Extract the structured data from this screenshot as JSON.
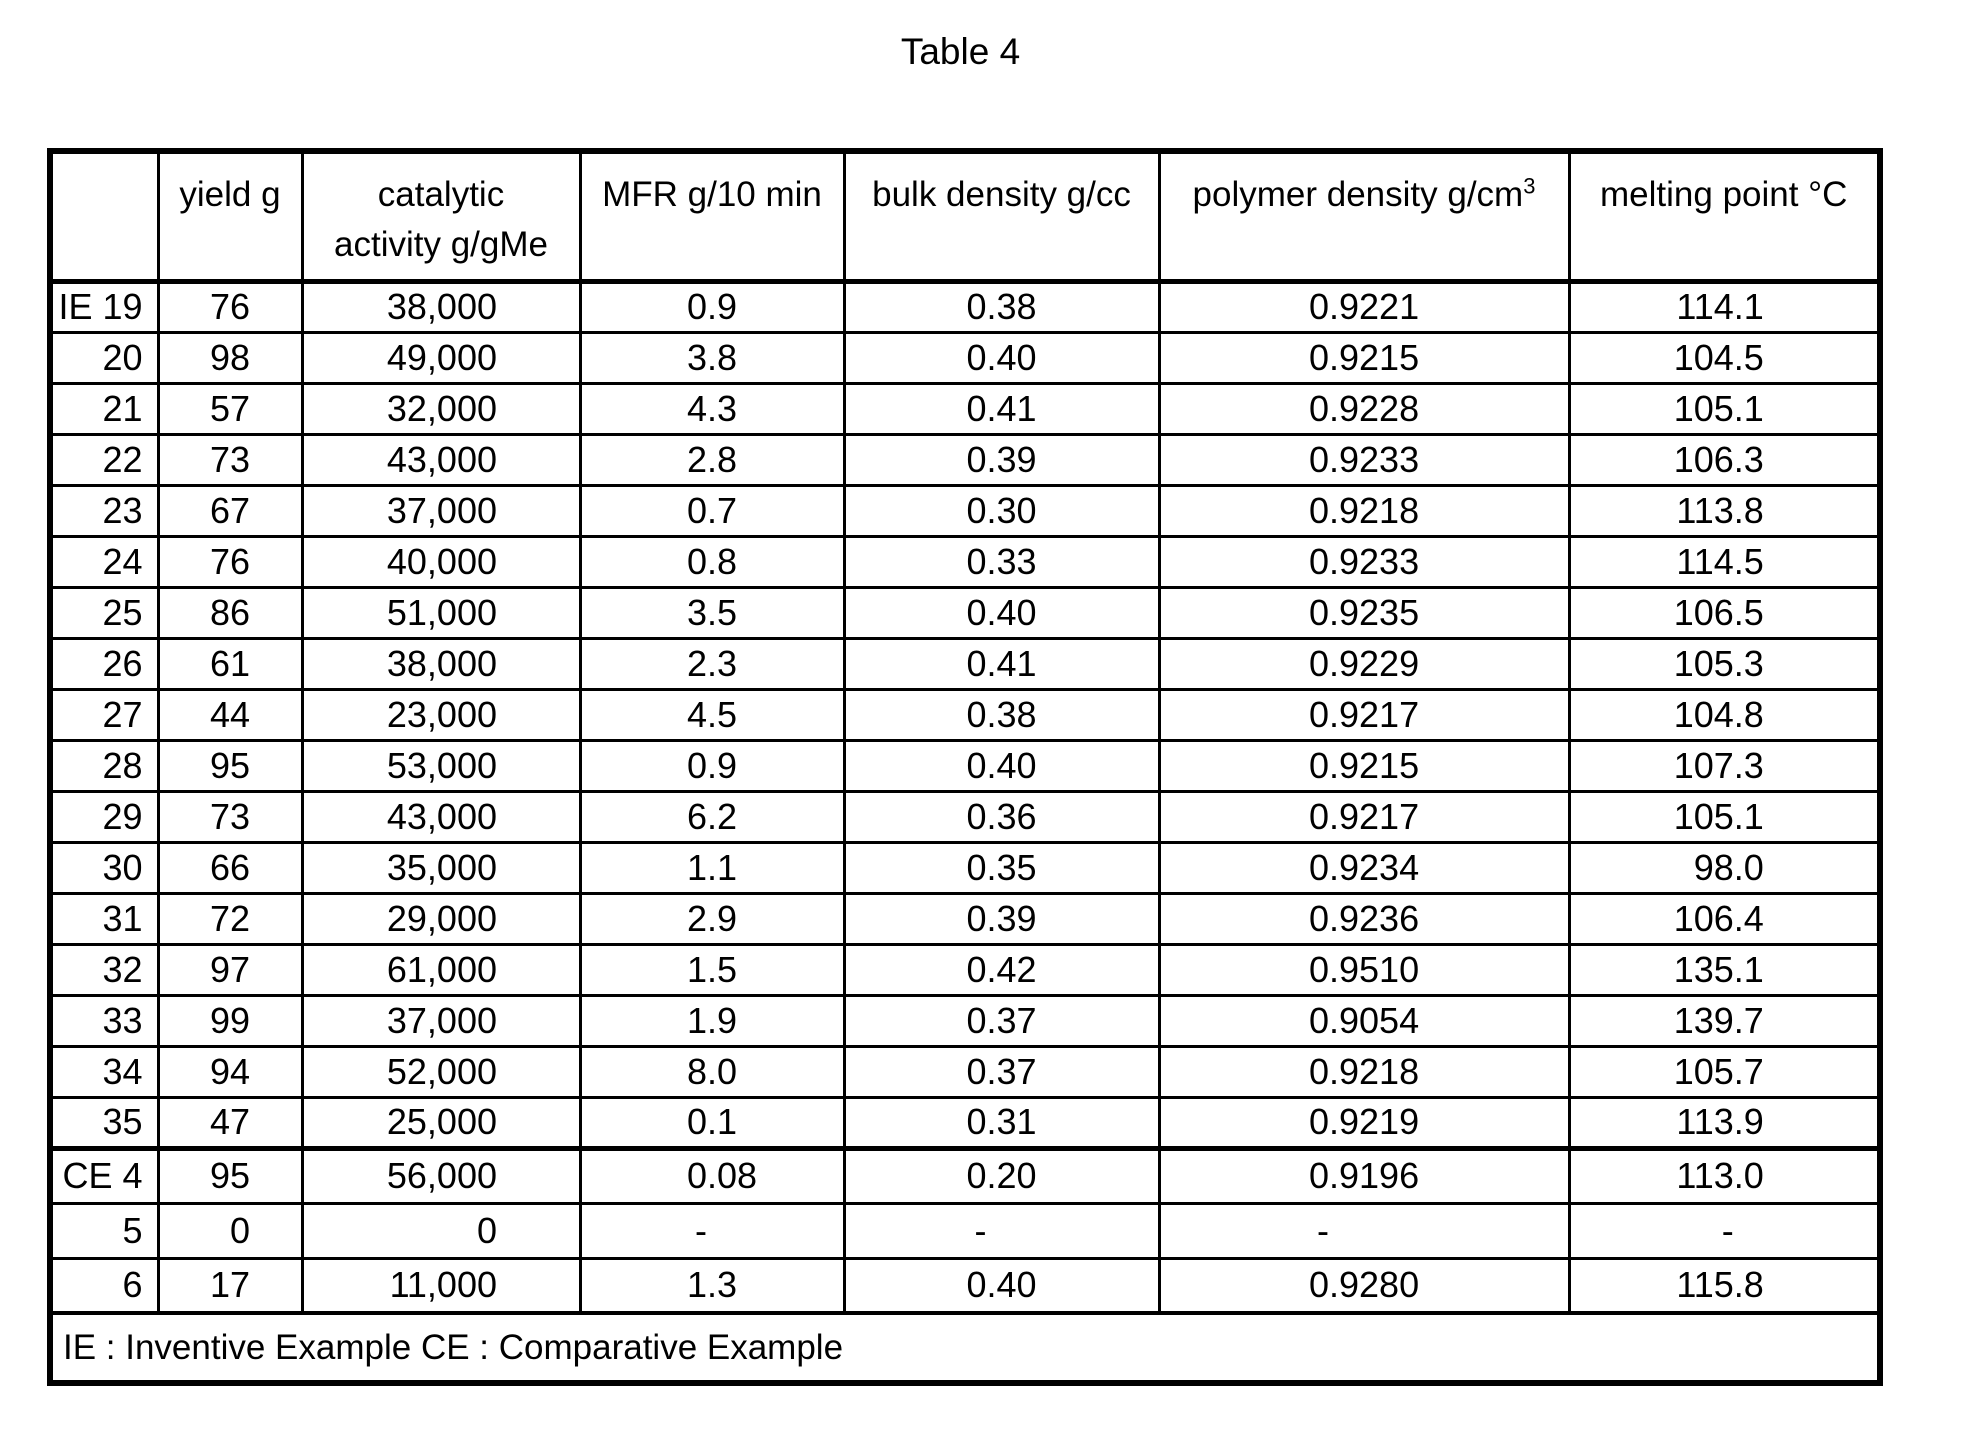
{
  "title": "Table 4",
  "table": {
    "column_headers": {
      "row_label": "",
      "yield": "yield g",
      "catalytic_activity_line1": "catalytic",
      "catalytic_activity_line2": "activity g/gMe",
      "mfr": "MFR g/10 min",
      "bulk_density": "bulk density g/cc",
      "polymer_density_base": "polymer density g/cm",
      "polymer_density_superscript": "3",
      "melting_point": "melting point °C"
    },
    "inventive_example_rows": [
      {
        "label": "IE 19",
        "yield": "76",
        "catalytic_activity": "38,000",
        "mfr": "0.9",
        "bulk_density": "0.38",
        "polymer_density": "0.9221",
        "melting_point": "114.1"
      },
      {
        "label": "20",
        "yield": "98",
        "catalytic_activity": "49,000",
        "mfr": "3.8",
        "bulk_density": "0.40",
        "polymer_density": "0.9215",
        "melting_point": "104.5"
      },
      {
        "label": "21",
        "yield": "57",
        "catalytic_activity": "32,000",
        "mfr": "4.3",
        "bulk_density": "0.41",
        "polymer_density": "0.9228",
        "melting_point": "105.1"
      },
      {
        "label": "22",
        "yield": "73",
        "catalytic_activity": "43,000",
        "mfr": "2.8",
        "bulk_density": "0.39",
        "polymer_density": "0.9233",
        "melting_point": "106.3"
      },
      {
        "label": "23",
        "yield": "67",
        "catalytic_activity": "37,000",
        "mfr": "0.7",
        "bulk_density": "0.30",
        "polymer_density": "0.9218",
        "melting_point": "113.8"
      },
      {
        "label": "24",
        "yield": "76",
        "catalytic_activity": "40,000",
        "mfr": "0.8",
        "bulk_density": "0.33",
        "polymer_density": "0.9233",
        "melting_point": "114.5"
      },
      {
        "label": "25",
        "yield": "86",
        "catalytic_activity": "51,000",
        "mfr": "3.5",
        "bulk_density": "0.40",
        "polymer_density": "0.9235",
        "melting_point": "106.5"
      },
      {
        "label": "26",
        "yield": "61",
        "catalytic_activity": "38,000",
        "mfr": "2.3",
        "bulk_density": "0.41",
        "polymer_density": "0.9229",
        "melting_point": "105.3"
      },
      {
        "label": "27",
        "yield": "44",
        "catalytic_activity": "23,000",
        "mfr": "4.5",
        "bulk_density": "0.38",
        "polymer_density": "0.9217",
        "melting_point": "104.8"
      },
      {
        "label": "28",
        "yield": "95",
        "catalytic_activity": "53,000",
        "mfr": "0.9",
        "bulk_density": "0.40",
        "polymer_density": "0.9215",
        "melting_point": "107.3"
      },
      {
        "label": "29",
        "yield": "73",
        "catalytic_activity": "43,000",
        "mfr": "6.2",
        "bulk_density": "0.36",
        "polymer_density": "0.9217",
        "melting_point": "105.1"
      },
      {
        "label": "30",
        "yield": "66",
        "catalytic_activity": "35,000",
        "mfr": "1.1",
        "bulk_density": "0.35",
        "polymer_density": "0.9234",
        "melting_point": "98.0"
      },
      {
        "label": "31",
        "yield": "72",
        "catalytic_activity": "29,000",
        "mfr": "2.9",
        "bulk_density": "0.39",
        "polymer_density": "0.9236",
        "melting_point": "106.4"
      },
      {
        "label": "32",
        "yield": "97",
        "catalytic_activity": "61,000",
        "mfr": "1.5",
        "bulk_density": "0.42",
        "polymer_density": "0.9510",
        "melting_point": "135.1"
      },
      {
        "label": "33",
        "yield": "99",
        "catalytic_activity": "37,000",
        "mfr": "1.9",
        "bulk_density": "0.37",
        "polymer_density": "0.9054",
        "melting_point": "139.7"
      },
      {
        "label": "34",
        "yield": "94",
        "catalytic_activity": "52,000",
        "mfr": "8.0",
        "bulk_density": "0.37",
        "polymer_density": "0.9218",
        "melting_point": "105.7"
      },
      {
        "label": "35",
        "yield": "47",
        "catalytic_activity": "25,000",
        "mfr": "0.1",
        "bulk_density": "0.31",
        "polymer_density": "0.9219",
        "melting_point": "113.9"
      }
    ],
    "comparative_example_rows": [
      {
        "label": "CE 4",
        "yield": "95",
        "catalytic_activity": "56,000",
        "mfr": "0.08",
        "bulk_density": "0.20",
        "polymer_density": "0.9196",
        "melting_point": "113.0"
      },
      {
        "label": "5",
        "yield": "0",
        "catalytic_activity": "0",
        "mfr": "-",
        "bulk_density": "-",
        "polymer_density": "-",
        "melting_point": "-"
      },
      {
        "label": "6",
        "yield": "17",
        "catalytic_activity": "11,000",
        "mfr": "1.3",
        "bulk_density": "0.40",
        "polymer_density": "0.9280",
        "melting_point": "115.8"
      }
    ],
    "footnote": "IE : Inventive Example CE : Comparative Example"
  }
}
